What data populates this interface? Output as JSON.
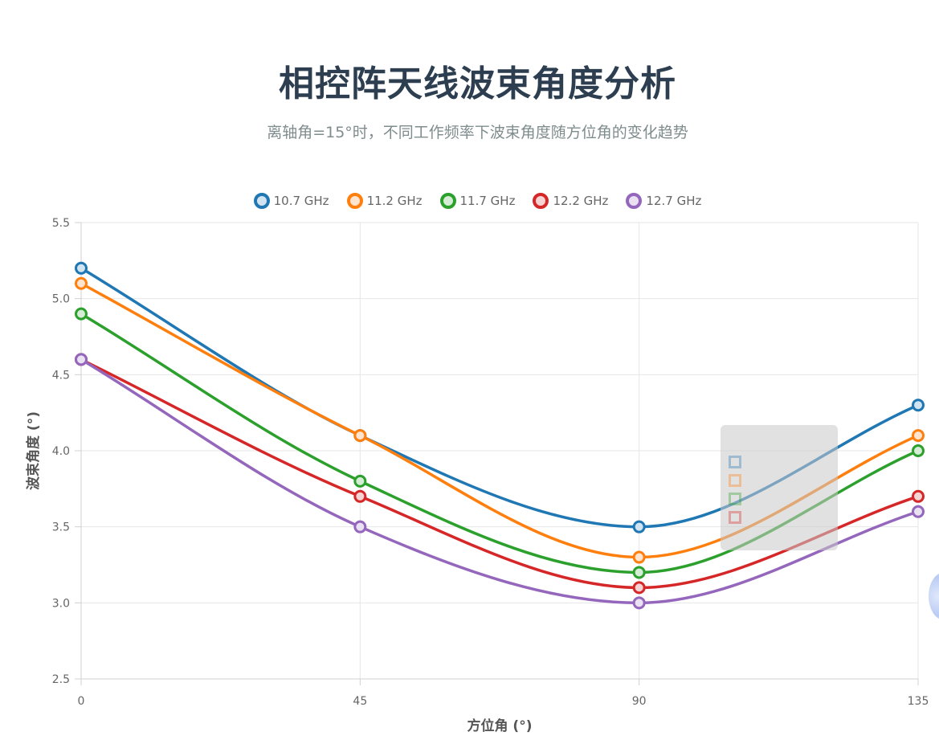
{
  "title": "相控阵天线波束角度分析",
  "subtitle": "离轴角=15°时，不同工作频率下波束角度随方位角的变化趋势",
  "chart_data": {
    "type": "line",
    "x": [
      0,
      45,
      90,
      135
    ],
    "xlabel": "方位角 (°)",
    "ylabel": "波束角度 (°)",
    "xlim": [
      0,
      135
    ],
    "ylim": [
      2.5,
      5.5
    ],
    "x_ticks": [
      "0",
      "45",
      "90",
      "135"
    ],
    "y_ticks": [
      "2.5",
      "3.0",
      "3.5",
      "4.0",
      "4.5",
      "5.0",
      "5.5"
    ],
    "grid": true,
    "legend_position": "top",
    "series": [
      {
        "name": "10.7 GHz",
        "color": "#1f77b4",
        "values": [
          5.2,
          4.1,
          3.5,
          4.3
        ]
      },
      {
        "name": "11.2 GHz",
        "color": "#ff7f0e",
        "values": [
          5.1,
          4.1,
          3.3,
          4.1
        ]
      },
      {
        "name": "11.7 GHz",
        "color": "#2ca02c",
        "values": [
          4.9,
          3.8,
          3.2,
          4.0
        ]
      },
      {
        "name": "12.2 GHz",
        "color": "#d62728",
        "values": [
          4.6,
          3.7,
          3.1,
          3.7
        ]
      },
      {
        "name": "12.7 GHz",
        "color": "#9467bd",
        "values": [
          4.6,
          3.5,
          3.0,
          3.6
        ]
      }
    ]
  }
}
